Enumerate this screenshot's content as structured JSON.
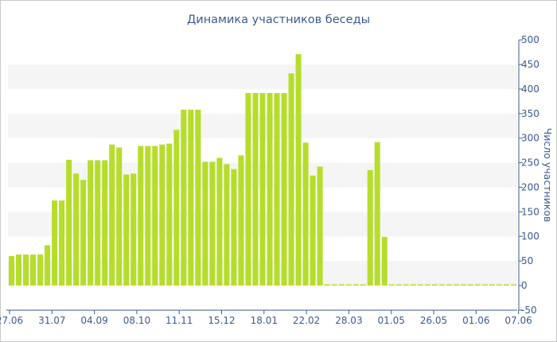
{
  "chart_data": {
    "type": "bar",
    "title": "Динамика участников беседы",
    "ylabel": "Число участников",
    "xlabel": "",
    "ylim": [
      -50,
      500
    ],
    "y_ticks": [
      -50,
      0,
      50,
      100,
      150,
      200,
      250,
      300,
      350,
      400,
      450,
      500
    ],
    "grid": "alternating horizontal bands",
    "y_axis_side": "right",
    "x_tick_labels": [
      "27.06",
      "31.07",
      "04.09",
      "08.10",
      "11.11",
      "15.12",
      "18.01",
      "22.02",
      "28.03",
      "01.05",
      "26.05",
      "01.06",
      "07.06"
    ],
    "values": [
      60,
      63,
      63,
      63,
      63,
      82,
      173,
      173,
      256,
      228,
      215,
      255,
      255,
      255,
      287,
      281,
      226,
      228,
      284,
      284,
      284,
      287,
      289,
      317,
      358,
      358,
      358,
      252,
      252,
      260,
      247,
      237,
      265,
      392,
      392,
      392,
      392,
      392,
      392,
      432,
      471,
      291,
      224,
      242,
      2,
      2,
      2,
      2,
      2,
      2,
      235,
      292,
      99,
      2,
      2,
      2,
      2,
      2,
      2,
      2,
      2,
      2,
      2,
      2,
      2,
      2,
      2,
      2,
      2,
      2,
      2
    ],
    "colors": {
      "bar": "#b6dd2a",
      "band": "#f5f5f5",
      "text": "#3b5b8f",
      "axis": "#3b5b8f"
    }
  }
}
